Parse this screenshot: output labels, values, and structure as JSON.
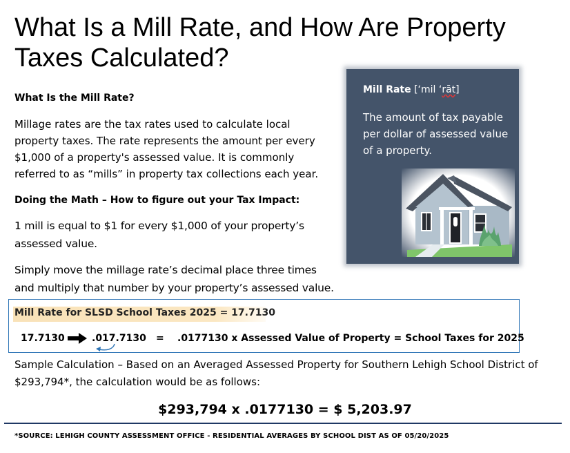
{
  "title": "What Is a Mill Rate, and How Are Property Taxes Calculated?",
  "section1": {
    "heading": "What Is the Mill Rate?",
    "lines": [
      "Millage rates are the tax rates used to calculate local",
      "property taxes. The rate represents the amount per every",
      "$1,000 of a property's assessed value.  It is commonly",
      "referred to as “mills” in property tax collections each year."
    ]
  },
  "section2": {
    "heading": "Doing the Math – How to figure out your Tax Impact:",
    "para1": [
      "1 mill is equal to $1 for every $1,000 of your property’s",
      "assessed value."
    ],
    "para2": [
      "Simply move the millage rate’s decimal place three times",
      "and multiply that number by your property’s assessed value."
    ]
  },
  "card": {
    "term": "Mill Rate",
    "pron_open": "[‘mil ‘",
    "pron_mid": "rāt",
    "pron_close": "]",
    "definition": [
      "The amount of tax payable",
      "per dollar of assessed value",
      "of a property."
    ],
    "colors": {
      "background": "#44546a",
      "text": "#ffffff"
    },
    "image": "house-illustration"
  },
  "rate_box": {
    "highlight": "Mill Rate for SLSD School Taxes 2025 = 17.7130",
    "rate": "17.7130",
    "moved": ".017.7130",
    "equals": "=",
    "formula": ".0177130 x Assessed Value of Property = School Taxes for 2025",
    "arrow_icon": "arrow-right-icon",
    "colors": {
      "border": "#2e75b6",
      "highlight": "#f9e2b8"
    }
  },
  "sample": {
    "lines": [
      "Sample Calculation – Based on an Averaged Assessed Property for Southern Lehigh School District of",
      "$293,794*, the calculation would be as follows:"
    ],
    "calculation": "$293,794 x .0177130 = $ 5,203.97"
  },
  "footnote": "*SOURCE:  LEHIGH COUNTY ASSESSMENT OFFICE - RESIDENTIAL AVERAGES BY SCHOOL DIST AS OF 05/20/2025"
}
